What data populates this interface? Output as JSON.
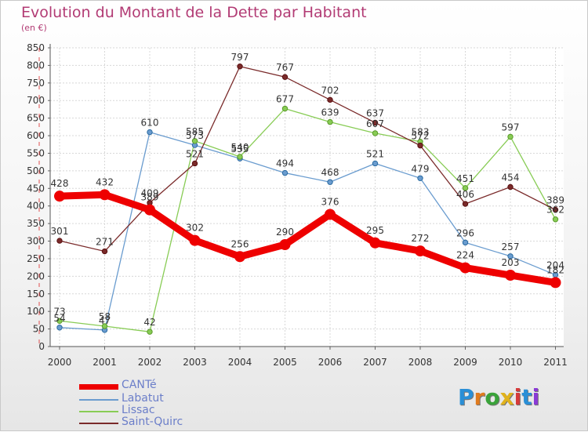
{
  "title": "Evolution du Montant de la Dette par Habitant",
  "unit": "(en €)",
  "logo": {
    "letters": [
      "P",
      "r",
      "o",
      "x",
      "i",
      "t",
      "i"
    ],
    "colors": [
      "#2a8fd6",
      "#e07b1d",
      "#3aa33a",
      "#e0b21d",
      "#d63a3a",
      "#2a8fd6",
      "#8a3ad6"
    ]
  },
  "chart_data": {
    "type": "line",
    "x": [
      "2000",
      "2001",
      "2002",
      "2003",
      "2004",
      "2005",
      "2006",
      "2007",
      "2008",
      "2009",
      "2010",
      "2011"
    ],
    "ylim": [
      0,
      850
    ],
    "yticks": [
      0,
      50,
      100,
      150,
      200,
      250,
      300,
      350,
      400,
      450,
      500,
      550,
      600,
      650,
      700,
      750,
      800,
      850
    ],
    "grid": true,
    "series": [
      {
        "name": "CANTé",
        "color": "#ee0000",
        "values": [
          428,
          432,
          389,
          302,
          256,
          290,
          376,
          295,
          272,
          224,
          203,
          182
        ]
      },
      {
        "name": "Labatut",
        "color": "#6a9ccf",
        "values": [
          54,
          47,
          610,
          573,
          535,
          494,
          468,
          521,
          479,
          296,
          257,
          204
        ]
      },
      {
        "name": "Lissac",
        "color": "#88cc55",
        "values": [
          73,
          58,
          42,
          585,
          540,
          677,
          639,
          607,
          583,
          451,
          597,
          362
        ]
      },
      {
        "name": "Saint-Quirc",
        "color": "#7a2a2a",
        "values": [
          301,
          271,
          409,
          521,
          797,
          767,
          702,
          637,
          572,
          406,
          454,
          389
        ]
      }
    ]
  }
}
